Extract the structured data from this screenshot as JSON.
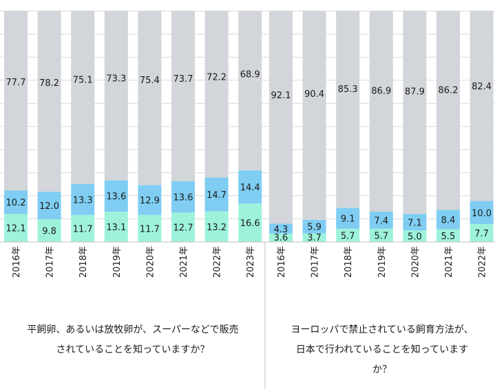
{
  "chart_data": [
    {
      "type": "bar",
      "stacked": true,
      "title": "平飼卵、あるいは放牧卵が、スーパーなどで販売されていることを知っていますか？",
      "categories": [
        "2016年",
        "2017年",
        "2018年",
        "2019年",
        "2020年",
        "2021年",
        "2022年",
        "2023年"
      ],
      "series": [
        {
          "values": [
            12.1,
            9.8,
            11.7,
            13.1,
            11.7,
            12.7,
            13.2,
            16.6
          ],
          "color": "#9ef2dc"
        },
        {
          "values": [
            10.2,
            12.0,
            13.3,
            13.6,
            12.9,
            13.6,
            14.7,
            14.4
          ],
          "color": "#7fcdf2"
        },
        {
          "values": [
            77.7,
            78.2,
            75.1,
            73.3,
            75.4,
            73.7,
            72.2,
            68.9
          ],
          "color": "#d2d5d9"
        }
      ],
      "ylim": [
        0,
        100
      ]
    },
    {
      "type": "bar",
      "stacked": true,
      "title": "ヨーロッパで禁止されている飼育方法が、日本で行われていることを知っていますか？",
      "categories": [
        "2016年",
        "2017年",
        "2018年",
        "2019年",
        "2020年",
        "2021年",
        "2022年"
      ],
      "series": [
        {
          "values": [
            3.6,
            3.7,
            5.7,
            5.7,
            5.0,
            5.5,
            7.7
          ],
          "color": "#9ef2dc"
        },
        {
          "values": [
            4.3,
            5.9,
            9.1,
            7.4,
            7.1,
            8.4,
            10.0
          ],
          "color": "#7fcdf2"
        },
        {
          "values": [
            92.1,
            90.4,
            85.3,
            86.9,
            87.9,
            86.2,
            82.4
          ],
          "color": "#d2d5d9"
        }
      ],
      "ylim": [
        0,
        100
      ]
    }
  ],
  "captions": {
    "left_line1": "平飼卵、あるいは放牧卵が、スーパーなどで販売",
    "left_line2": "されていることを知っていますか？",
    "right_line1": "ヨーロッパで禁止されている飼育方法が、",
    "right_line2": "日本で行われていることを知っています",
    "right_line3": "か？"
  },
  "colors": {
    "grid": "#d9d9d9",
    "axis": "#bfbfbf"
  }
}
